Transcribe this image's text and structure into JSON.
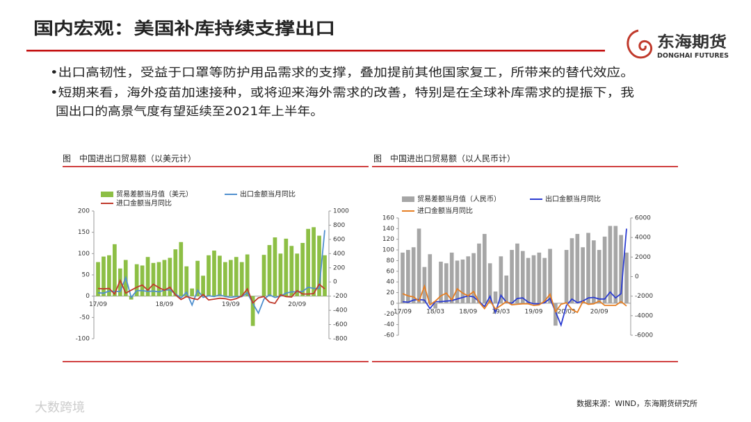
{
  "header": {
    "title": "国内宏观：美国补库持续支撑出口"
  },
  "logo": {
    "name": "东海期货",
    "en": "DONGHAI FUTURES"
  },
  "bullets": [
    "•出口高韧性，受益于口罩等防护用品需求的支撑，叠加提前其他国家复工，所带来的替代效应。",
    "•短期来看，海外疫苗加速接种，或将迎来海外需求的改善，特别是在全球补库需求的提振下，我",
    "国出口的高景气度有望延续至2021年上半年。"
  ],
  "chart_data": [
    {
      "type": "combo",
      "title": "图　中国进出口贸易额（以美元计）",
      "categories": [
        "17/09",
        null,
        null,
        null,
        null,
        null,
        null,
        null,
        null,
        null,
        null,
        null,
        "18/09",
        null,
        null,
        null,
        null,
        null,
        null,
        null,
        null,
        null,
        null,
        null,
        "19/09",
        null,
        null,
        null,
        null,
        null,
        null,
        null,
        null,
        null,
        null,
        null,
        "20/09",
        null,
        null,
        null,
        null,
        null
      ],
      "ylim": [
        -100,
        200
      ],
      "yticks": [
        -100,
        -50,
        0,
        50,
        100,
        150,
        200
      ],
      "y2lim": [
        -800,
        1000
      ],
      "y2ticks": [
        -800,
        -600,
        -400,
        -200,
        0,
        200,
        400,
        600,
        800,
        1000
      ],
      "series": [
        {
          "name": "贸易差额当月值（美元）",
          "kind": "bar",
          "color": "#8dbf45",
          "values": [
            80,
            93,
            96,
            122,
            65,
            85,
            -8,
            75,
            72,
            92,
            78,
            80,
            85,
            90,
            110,
            127,
            70,
            18,
            83,
            48,
            96,
            107,
            95,
            80,
            85,
            92,
            80,
            98,
            -70,
            null,
            97,
            120,
            138,
            100,
            135,
            118,
            100,
            125,
            158,
            162,
            142,
            96
          ]
        },
        {
          "name": "出口金额当月同比",
          "kind": "line",
          "color": "#4f8fce",
          "values": [
            8,
            7,
            12,
            11,
            11,
            44,
            -3,
            13,
            13,
            11,
            12,
            10,
            14,
            15,
            5,
            -4,
            9,
            -21,
            14,
            -3,
            1,
            -1,
            3,
            -1,
            -3,
            -1,
            -1,
            8,
            -17,
            -40,
            -7,
            3,
            -3,
            0,
            7,
            10,
            10,
            11,
            21,
            18,
            18,
            155
          ]
        },
        {
          "name": "进口金额当月同比",
          "kind": "line",
          "color": "#c0392b",
          "values": [
            18,
            17,
            18,
            5,
            37,
            7,
            14,
            21,
            26,
            14,
            28,
            20,
            14,
            21,
            3,
            -8,
            -1,
            -5,
            -8,
            4,
            -9,
            -7,
            -5,
            -6,
            -9,
            -6,
            0,
            17,
            -16,
            -4,
            -1,
            -14,
            -17,
            3,
            -1,
            -2,
            13,
            5,
            5,
            6,
            28,
            17
          ]
        }
      ]
    },
    {
      "type": "combo",
      "title": "图　中国进出口贸易额（以人民币计）",
      "categories": [
        "17/09",
        null,
        null,
        null,
        null,
        null,
        "18/03",
        null,
        null,
        null,
        null,
        null,
        "18/09",
        null,
        null,
        null,
        null,
        null,
        "19/03",
        null,
        null,
        null,
        null,
        null,
        "19/09",
        null,
        null,
        null,
        null,
        null,
        "20/03",
        null,
        null,
        null,
        null,
        null,
        "20/09",
        null,
        null,
        null,
        null,
        null
      ],
      "ylim": [
        -60,
        160
      ],
      "yticks": [
        -60,
        -40,
        -20,
        0,
        20,
        40,
        60,
        80,
        100,
        120,
        140,
        160
      ],
      "y2lim": [
        -6000,
        6000
      ],
      "y2ticks": [
        -6000,
        -4000,
        -2000,
        0,
        2000,
        4000,
        6000
      ],
      "series": [
        {
          "name": "贸易差额当月值（人民币）",
          "kind": "bar",
          "color": "#a6a6a6",
          "values": [
            95,
            100,
            105,
            140,
            68,
            92,
            -10,
            78,
            75,
            95,
            80,
            82,
            88,
            94,
            112,
            130,
            75,
            22,
            88,
            52,
            100,
            112,
            98,
            85,
            90,
            95,
            85,
            102,
            -42,
            null,
            100,
            122,
            130,
            105,
            132,
            118,
            100,
            125,
            145,
            145,
            128,
            95
          ]
        },
        {
          "name": "出口金额当月同比",
          "kind": "line",
          "color": "#2a3bd1",
          "values": [
            3,
            2,
            6,
            7,
            6,
            -10,
            3,
            3,
            4,
            5,
            8,
            11,
            14,
            12,
            3,
            -6,
            13,
            -17,
            15,
            2,
            0,
            9,
            10,
            2,
            -1,
            -1,
            1,
            9,
            -16,
            -41,
            -4,
            8,
            1,
            4,
            10,
            11,
            8,
            8,
            21,
            10,
            18,
            140
          ]
        },
        {
          "name": "进口金额当月同比",
          "kind": "line",
          "color": "#e67e22",
          "values": [
            18,
            14,
            12,
            4,
            32,
            -3,
            4,
            14,
            19,
            6,
            27,
            19,
            14,
            22,
            2,
            -10,
            5,
            -11,
            -4,
            3,
            -3,
            -2,
            -1,
            -1,
            -4,
            -3,
            4,
            17,
            -16,
            -2,
            1,
            -12,
            -17,
            3,
            -2,
            -1,
            4,
            -4,
            -4,
            -4,
            3,
            -5
          ]
        }
      ]
    }
  ],
  "source": "数据来源：WIND，东海期货研究所",
  "watermark": "大数跨境"
}
